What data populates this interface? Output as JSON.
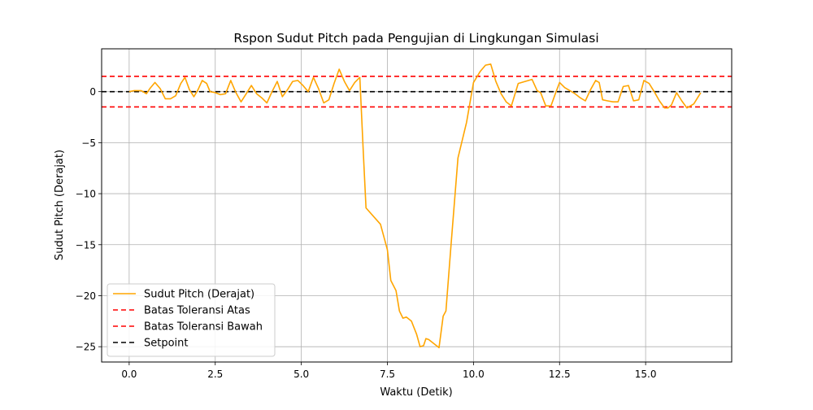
{
  "chart_data": {
    "type": "line",
    "title": "Rspon Sudut Pitch pada Pengujian di Lingkungan Simulasi",
    "xlabel": "Waktu (Detik)",
    "ylabel": "Sudut Pitch (Derajat)",
    "xlim": [
      -0.8,
      17.5
    ],
    "ylim": [
      -26.5,
      4.2
    ],
    "xticks": [
      0,
      2.5,
      5,
      7.5,
      10,
      12.5,
      15
    ],
    "xtick_labels": [
      "0.0",
      "2.5",
      "5.0",
      "7.5",
      "10.0",
      "12.5",
      "15.0"
    ],
    "yticks": [
      0,
      -5,
      -10,
      -15,
      -20,
      -25
    ],
    "ytick_labels": [
      "0",
      "−5",
      "−10",
      "−15",
      "−20",
      "−25"
    ],
    "grid": true,
    "legend_position": "lower-left",
    "series": [
      {
        "name": "Sudut Pitch (Derajat)",
        "color": "#ffa500",
        "style": "solid",
        "x": [
          0.0,
          0.15,
          0.35,
          0.5,
          0.6,
          0.75,
          0.9,
          1.05,
          1.2,
          1.35,
          1.5,
          1.62,
          1.75,
          1.88,
          2.0,
          2.12,
          2.25,
          2.35,
          2.5,
          2.65,
          2.8,
          2.95,
          3.1,
          3.25,
          3.4,
          3.55,
          3.7,
          3.85,
          4.0,
          4.15,
          4.3,
          4.45,
          4.6,
          4.75,
          4.9,
          5.05,
          5.2,
          5.35,
          5.5,
          5.65,
          5.8,
          5.95,
          6.1,
          6.25,
          6.4,
          6.55,
          6.7,
          6.8,
          6.88,
          7.3,
          7.5,
          7.6,
          7.75,
          7.85,
          7.95,
          8.05,
          8.2,
          8.35,
          8.45,
          8.55,
          8.62,
          8.7,
          9.0,
          9.12,
          9.2,
          9.35,
          9.55,
          9.8,
          10.0,
          10.2,
          10.35,
          10.5,
          10.65,
          10.8,
          10.95,
          11.1,
          11.3,
          11.5,
          11.7,
          11.85,
          11.95,
          12.1,
          12.25,
          12.4,
          12.5,
          12.65,
          12.8,
          12.95,
          13.1,
          13.25,
          13.4,
          13.55,
          13.65,
          13.75,
          13.9,
          14.05,
          14.2,
          14.35,
          14.5,
          14.65,
          14.8,
          14.95,
          15.1,
          15.25,
          15.4,
          15.55,
          15.65,
          15.75,
          15.9,
          16.05,
          16.2,
          16.4,
          16.6
        ],
        "y": [
          0.0,
          0.1,
          0.1,
          -0.2,
          0.3,
          0.9,
          0.3,
          -0.7,
          -0.7,
          -0.4,
          0.8,
          1.4,
          0.2,
          -0.5,
          0.2,
          1.1,
          0.8,
          0.0,
          -0.1,
          -0.3,
          -0.2,
          1.1,
          -0.1,
          -1.0,
          -0.2,
          0.6,
          -0.2,
          -0.6,
          -1.1,
          0.0,
          1.0,
          -0.5,
          0.2,
          1.0,
          1.1,
          0.6,
          0.0,
          1.4,
          0.3,
          -1.1,
          -0.8,
          0.8,
          2.2,
          1.0,
          0.1,
          0.9,
          1.4,
          -6.0,
          -11.4,
          -13.0,
          -15.5,
          -18.5,
          -19.5,
          -21.5,
          -22.2,
          -22.1,
          -22.5,
          -23.8,
          -25.0,
          -24.9,
          -24.2,
          -24.3,
          -25.1,
          -22.0,
          -21.5,
          -15.0,
          -6.5,
          -3.0,
          0.9,
          2.0,
          2.6,
          2.7,
          1.0,
          -0.2,
          -1.0,
          -1.4,
          0.8,
          1.0,
          1.2,
          0.1,
          -0.1,
          -1.4,
          -1.4,
          0.0,
          0.9,
          0.4,
          0.1,
          -0.2,
          -0.6,
          -0.9,
          0.2,
          1.1,
          0.9,
          -0.8,
          -0.9,
          -1.0,
          -1.0,
          0.5,
          0.6,
          -0.9,
          -0.8,
          1.1,
          0.8,
          0.0,
          -0.9,
          -1.6,
          -1.6,
          -1.3,
          -0.1,
          -0.9,
          -1.6,
          -1.2,
          -0.1
        ]
      },
      {
        "name": "Batas Toleransi Atas",
        "color": "#ff0000",
        "style": "dashed",
        "y_const": 1.5
      },
      {
        "name": "Batas Toleransi Bawah",
        "color": "#ff0000",
        "style": "dashed",
        "y_const": -1.5
      },
      {
        "name": "Setpoint",
        "color": "#000000",
        "style": "dashed",
        "y_const": 0
      }
    ]
  }
}
